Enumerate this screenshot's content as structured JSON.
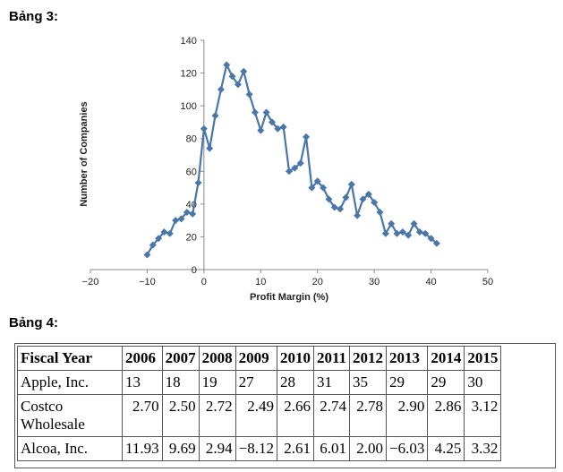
{
  "headings": {
    "chart": "Bảng 3:",
    "table": "Bảng 4:"
  },
  "chart_data": {
    "type": "line",
    "title": "",
    "xlabel": "Profit Margin (%)",
    "ylabel": "Number of Companies",
    "xlim": [
      -20,
      50
    ],
    "ylim": [
      0,
      140
    ],
    "x_ticks": [
      -20,
      -10,
      0,
      10,
      20,
      30,
      40,
      50
    ],
    "x_tick_labels": [
      "−20",
      "−10",
      "0",
      "10",
      "20",
      "30",
      "40",
      "50"
    ],
    "y_ticks": [
      0,
      20,
      40,
      60,
      80,
      100,
      120,
      140
    ],
    "y_tick_labels": [
      "0",
      "20",
      "40",
      "60",
      "80",
      "100",
      "120",
      "140"
    ],
    "grid": false,
    "color": "#4a76a8",
    "marker": "diamond",
    "series": [
      {
        "x": [
          -10,
          -9,
          -8,
          -7,
          -6,
          -5,
          -4,
          -3,
          -2,
          -1,
          0,
          1,
          2,
          3,
          4,
          5,
          6,
          7,
          8,
          9,
          10,
          11,
          12,
          13,
          14,
          15,
          16,
          17,
          18,
          19,
          20,
          21,
          22,
          23,
          24,
          25,
          26,
          27,
          28,
          29,
          30,
          31,
          32,
          33,
          34,
          35,
          36,
          37,
          38,
          39,
          40,
          41
        ],
        "y": [
          9,
          15,
          19,
          23,
          22,
          30,
          31,
          35,
          34,
          53,
          86,
          74,
          94,
          110,
          125,
          118,
          113,
          121,
          107,
          96,
          85,
          96,
          90,
          86,
          87,
          60,
          62,
          65,
          81,
          50,
          54,
          50,
          43,
          38,
          37,
          44,
          52,
          33,
          43,
          46,
          41,
          35,
          22,
          28,
          22,
          23,
          21,
          28,
          23,
          22,
          19,
          16
        ]
      }
    ]
  },
  "table": {
    "header": [
      "Fiscal Year",
      "2006",
      "2007",
      "2008",
      "2009",
      "2010",
      "2011",
      "2012",
      "2013",
      "2014",
      "2015"
    ],
    "rows": [
      {
        "label": "Apple, Inc.",
        "values": [
          "13",
          "18",
          "19",
          "27",
          "28",
          "31",
          "35",
          "29",
          "29",
          "30"
        ]
      },
      {
        "label": "Costco Wholesale",
        "values": [
          "2.70",
          "2.50",
          "2.72",
          "2.49",
          "2.66",
          "2.74",
          "2.78",
          "2.90",
          "2.86",
          "3.12"
        ]
      },
      {
        "label": "Alcoa, Inc.",
        "values": [
          "11.93",
          "9.69",
          "2.94",
          "−8.12",
          "2.61",
          "6.01",
          "2.00",
          "−6.03",
          "4.25",
          "3.32"
        ]
      }
    ]
  }
}
